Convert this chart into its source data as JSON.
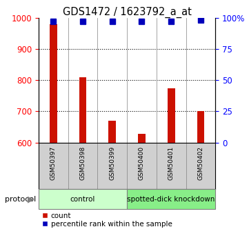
{
  "title": "GDS1472 / 1623792_a_at",
  "samples": [
    "GSM50397",
    "GSM50398",
    "GSM50399",
    "GSM50400",
    "GSM50401",
    "GSM50402"
  ],
  "bar_values": [
    980,
    810,
    670,
    628,
    775,
    700
  ],
  "percentile_values": [
    97,
    97,
    97,
    97,
    97,
    98
  ],
  "ylim_left": [
    600,
    1000
  ],
  "ylim_right": [
    0,
    100
  ],
  "yticks_left": [
    600,
    700,
    800,
    900,
    1000
  ],
  "yticks_right": [
    0,
    25,
    50,
    75,
    100
  ],
  "ytick_labels_right": [
    "0",
    "25",
    "50",
    "75",
    "100%"
  ],
  "bar_color": "#cc1100",
  "dot_color": "#0000bb",
  "group_colors": [
    "#ccffcc",
    "#88ee88"
  ],
  "group_labels": [
    "control",
    "spotted-dick knockdown"
  ],
  "group_sizes": [
    3,
    3
  ],
  "protocol_label": "protocol",
  "legend_count_label": "count",
  "legend_pct_label": "percentile rank within the sample",
  "background_color": "#ffffff",
  "sample_box_color": "#d0d0d0",
  "bar_width": 0.25,
  "grid_yticks": [
    700,
    800,
    900
  ]
}
